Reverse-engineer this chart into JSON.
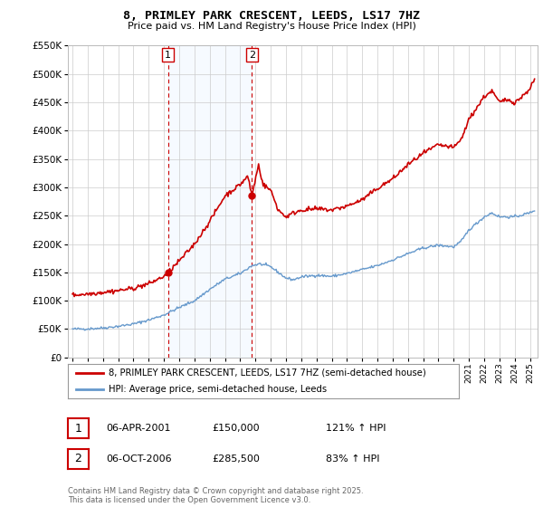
{
  "title": "8, PRIMLEY PARK CRESCENT, LEEDS, LS17 7HZ",
  "subtitle": "Price paid vs. HM Land Registry's House Price Index (HPI)",
  "legend_line1": "8, PRIMLEY PARK CRESCENT, LEEDS, LS17 7HZ (semi-detached house)",
  "legend_line2": "HPI: Average price, semi-detached house, Leeds",
  "annotation1_date": "06-APR-2001",
  "annotation1_price": "£150,000",
  "annotation1_hpi": "121% ↑ HPI",
  "annotation2_date": "06-OCT-2006",
  "annotation2_price": "£285,500",
  "annotation2_hpi": "83% ↑ HPI",
  "footnote": "Contains HM Land Registry data © Crown copyright and database right 2025.\nThis data is licensed under the Open Government Licence v3.0.",
  "ylim": [
    0,
    550000
  ],
  "xlim_left": 1994.7,
  "xlim_right": 2025.5,
  "sale1_year": 2001.27,
  "sale1_price": 150000,
  "sale2_year": 2006.77,
  "sale2_price": 285500,
  "red_color": "#cc0000",
  "blue_color": "#6699cc",
  "shade_color": "#ddeeff",
  "bg_color": "#ffffff",
  "grid_color": "#cccccc"
}
